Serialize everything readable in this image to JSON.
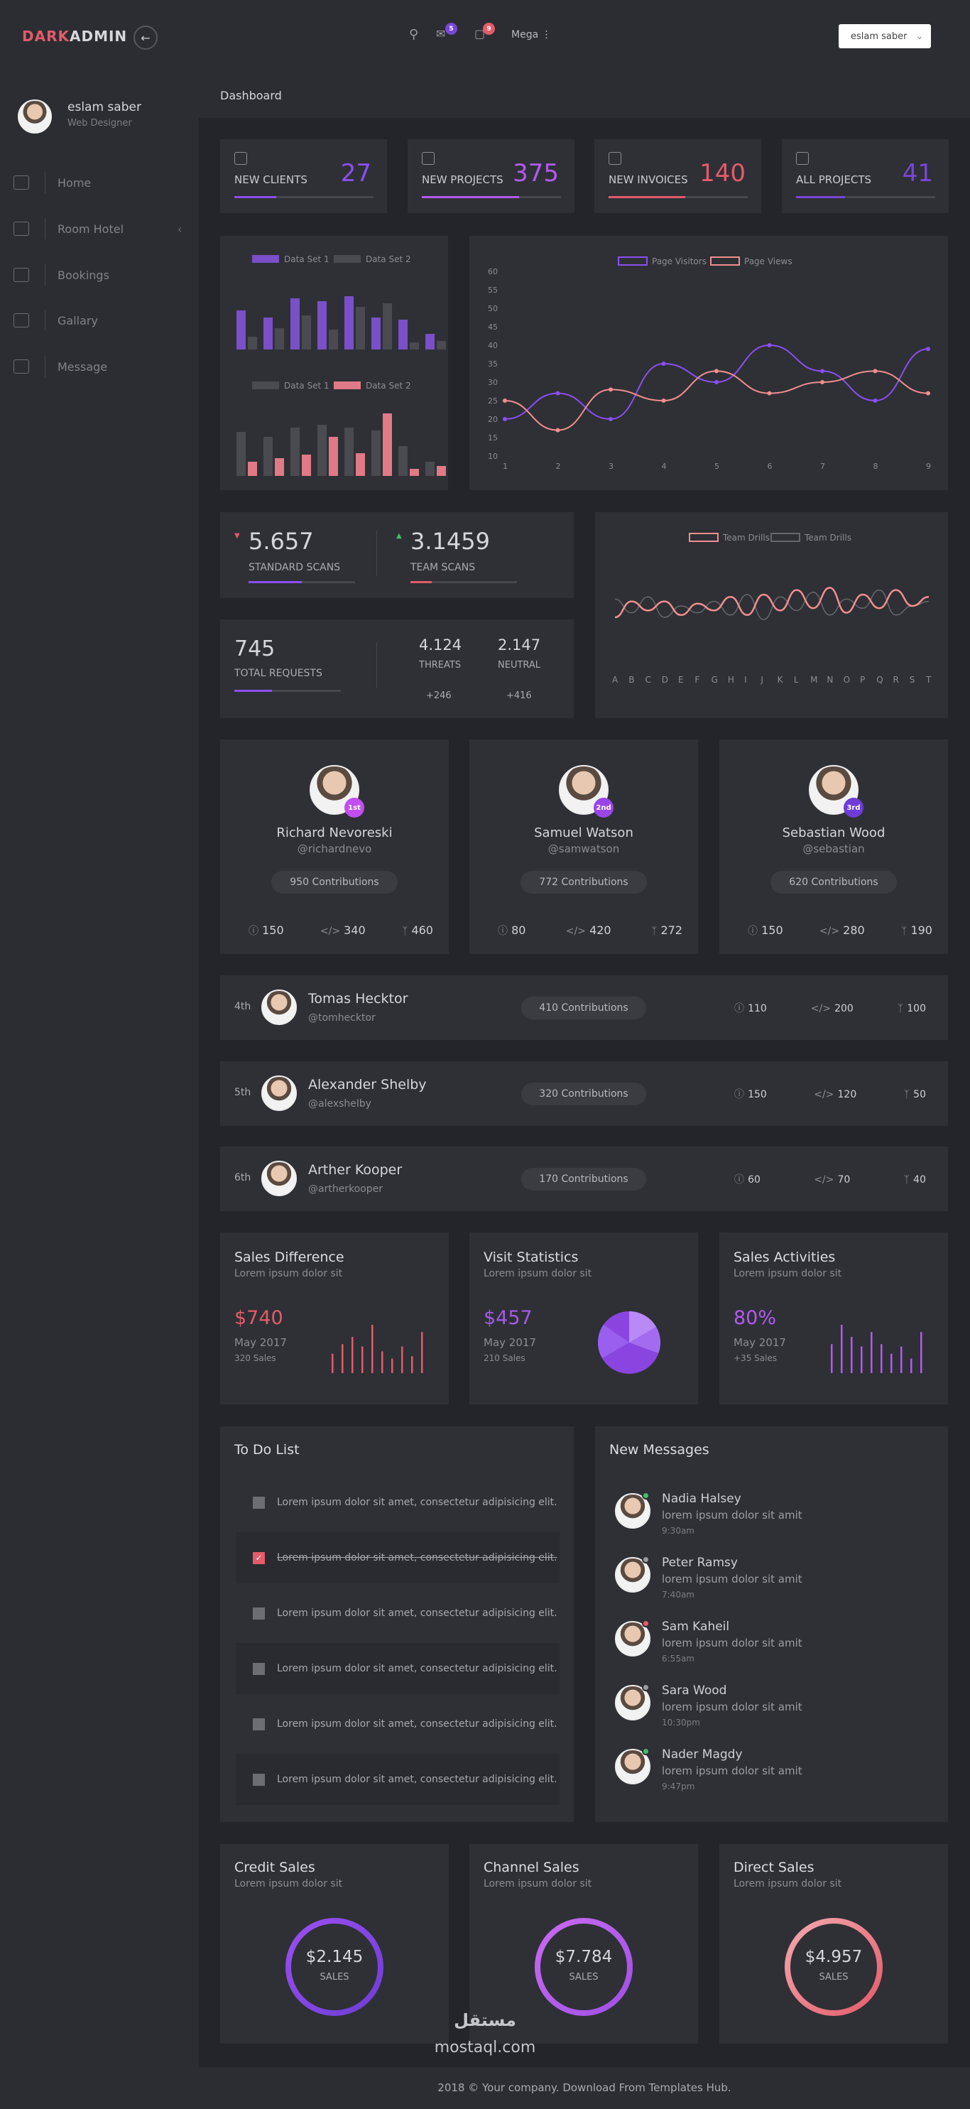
{
  "header": {
    "logo_dark": "DARK",
    "logo_admin": "ADMIN",
    "mail_badge": "5",
    "cart_badge": "9",
    "mega": "Mega",
    "user": "eslam saber"
  },
  "sidebar": {
    "name": "eslam saber",
    "role": "Web Designer",
    "items": [
      {
        "label": "Home"
      },
      {
        "label": "Room Hotel"
      },
      {
        "label": "Bookings"
      },
      {
        "label": "Gallary"
      },
      {
        "label": "Message"
      }
    ]
  },
  "breadcrumb": "Dashboard",
  "stats": [
    {
      "label": "NEW CLIENTS",
      "value": "27",
      "color": "#8b4ff0",
      "progress": 0.3
    },
    {
      "label": "NEW PROJECTS",
      "value": "375",
      "color": "#b35af2",
      "progress": 0.7
    },
    {
      "label": "NEW INVOICES",
      "value": "140",
      "color": "#e45b6a",
      "progress": 0.55
    },
    {
      "label": "ALL PROJECTS",
      "value": "41",
      "color": "#7a45d8",
      "progress": 0.35
    }
  ],
  "bar_chart_1": {
    "legend": [
      "Data Set 1",
      "Data Set 2"
    ],
    "colors": [
      "#7a4fc8",
      "#4a4b50"
    ],
    "series": [
      [
        55,
        45,
        72,
        68,
        75,
        45,
        42,
        22
      ],
      [
        18,
        30,
        48,
        28,
        60,
        65,
        10,
        12
      ]
    ]
  },
  "bar_chart_2": {
    "legend": [
      "Data Set 1",
      "Data Set 2"
    ],
    "colors": [
      "#4a4b50",
      "#e07a86"
    ],
    "series": [
      [
        62,
        55,
        68,
        72,
        68,
        64,
        42,
        20
      ],
      [
        20,
        25,
        30,
        55,
        32,
        88,
        10,
        14
      ]
    ]
  },
  "line_chart": {
    "legend": [
      "Page Visitors",
      "Page Views"
    ],
    "colors": [
      "#8b4ff0",
      "#f28e8e"
    ],
    "x": [
      "1",
      "2",
      "3",
      "4",
      "5",
      "6",
      "7",
      "8",
      "9"
    ],
    "yticks": [
      "10",
      "15",
      "20",
      "25",
      "30",
      "35",
      "40",
      "45",
      "50",
      "55",
      "60"
    ],
    "visitors": [
      20,
      27,
      20,
      35,
      30,
      40,
      33,
      25,
      39
    ],
    "views": [
      25,
      17,
      28,
      25,
      33,
      27,
      30,
      33,
      27
    ]
  },
  "scans": {
    "standard_value": "5.657",
    "standard_label": "STANDARD SCANS",
    "team_value": "3.1459",
    "team_label": "TEAM SCANS"
  },
  "requests": {
    "total": "745",
    "total_label": "TOTAL REQUESTS",
    "threats": "4.124",
    "threats_label": "THREATS",
    "threats_delta": "+246",
    "neutral": "2.147",
    "neutral_label": "NEUTRAL",
    "neutral_delta": "+416"
  },
  "drills_chart": {
    "legend": [
      "Team Drills",
      "Team Drills"
    ],
    "colors": [
      "#f28e8e",
      "#66686d"
    ],
    "x": [
      "A",
      "B",
      "C",
      "D",
      "E",
      "F",
      "G",
      "H",
      "I",
      "J",
      "K",
      "L",
      "M",
      "N",
      "O",
      "P",
      "Q",
      "R",
      "S",
      "T"
    ],
    "s1": [
      20,
      34,
      26,
      34,
      22,
      32,
      26,
      38,
      22,
      40,
      26,
      44,
      28,
      46,
      24,
      40,
      28,
      44,
      30,
      38
    ],
    "s2": [
      36,
      24,
      38,
      20,
      30,
      24,
      34,
      22,
      40,
      18,
      38,
      26,
      42,
      22,
      36,
      28,
      44,
      22,
      30,
      34
    ]
  },
  "top_contributors": [
    {
      "rank": "1st",
      "name": "Richard Nevoreski",
      "handle": "@richardnevo",
      "contrib": "950 Contributions",
      "issues": "150",
      "code": "340",
      "forks": "460",
      "badge": "#c24df0"
    },
    {
      "rank": "2nd",
      "name": "Samuel Watson",
      "handle": "@samwatson",
      "contrib": "772 Contributions",
      "issues": "80",
      "code": "420",
      "forks": "272",
      "badge": "#9a45e6"
    },
    {
      "rank": "3rd",
      "name": "Sebastian Wood",
      "handle": "@sebastian",
      "contrib": "620 Contributions",
      "issues": "150",
      "code": "280",
      "forks": "190",
      "badge": "#6e3dd6"
    }
  ],
  "contributors": [
    {
      "rank": "4th",
      "name": "Tomas Hecktor",
      "handle": "@tomhecktor",
      "contrib": "410 Contributions",
      "issues": "110",
      "code": "200",
      "forks": "100"
    },
    {
      "rank": "5th",
      "name": "Alexander Shelby",
      "handle": "@alexshelby",
      "contrib": "320 Contributions",
      "issues": "150",
      "code": "120",
      "forks": "50"
    },
    {
      "rank": "6th",
      "name": "Arther Kooper",
      "handle": "@artherkooper",
      "contrib": "170 Contributions",
      "issues": "60",
      "code": "70",
      "forks": "40"
    }
  ],
  "sales_cards": [
    {
      "title": "Sales Difference",
      "sub": "Lorem ipsum dolor sit",
      "value": "$740",
      "date": "May 2017",
      "note": "320 Sales",
      "color": "#e45b6a",
      "bars": [
        0.4,
        0.6,
        0.75,
        0.55,
        1.0,
        0.45,
        0.3,
        0.55,
        0.35,
        0.85
      ]
    },
    {
      "title": "Visit Statistics",
      "sub": "Lorem ipsum dolor sit",
      "value": "$457",
      "date": "May 2017",
      "note": "210 Sales",
      "color": "#a35ae8"
    },
    {
      "title": "Sales Activities",
      "sub": "Lorem ipsum dolor sit",
      "value": "80%",
      "date": "May 2017",
      "note": "+35 Sales",
      "color": "#b35af2",
      "bars": [
        0.6,
        1.0,
        0.75,
        0.55,
        0.85,
        0.6,
        0.4,
        0.55,
        0.3,
        0.85
      ]
    }
  ],
  "todo": {
    "title": "To Do List",
    "items": [
      {
        "text": "Lorem ipsum dolor sit amet, consectetur adipisicing elit.",
        "done": false
      },
      {
        "text": "Lorem ipsum dolor sit amet, consectetur adipisicing elit.",
        "done": true
      },
      {
        "text": "Lorem ipsum dolor sit amet, consectetur adipisicing elit.",
        "done": false
      },
      {
        "text": "Lorem ipsum dolor sit amet, consectetur adipisicing elit.",
        "done": false
      },
      {
        "text": "Lorem ipsum dolor sit amet, consectetur adipisicing elit.",
        "done": false
      },
      {
        "text": "Lorem ipsum dolor sit amet, consectetur adipisicing elit.",
        "done": false
      }
    ]
  },
  "messages": {
    "title": "New Messages",
    "items": [
      {
        "name": "Nadia Halsey",
        "text": "lorem ipsum dolor sit amit",
        "time": "9:30am",
        "status": "#3fbf6a"
      },
      {
        "name": "Peter Ramsy",
        "text": "lorem ipsum dolor sit amit",
        "time": "7:40am",
        "status": "#9a9ca1"
      },
      {
        "name": "Sam Kaheil",
        "text": "lorem ipsum dolor sit amit",
        "time": "6:55am",
        "status": "#e45b6a"
      },
      {
        "name": "Sara Wood",
        "text": "lorem ipsum dolor sit amit",
        "time": "10:30pm",
        "status": "#9a9ca1"
      },
      {
        "name": "Nader Magdy",
        "text": "lorem ipsum dolor sit amit",
        "time": "9:47pm",
        "status": "#3fbf6a"
      }
    ]
  },
  "donuts": [
    {
      "title": "Credit Sales",
      "sub": "Lorem ipsum dolor sit",
      "value": "$2.145",
      "label": "SALES",
      "c1": "#9b4ff0",
      "c2": "#6e3dd6"
    },
    {
      "title": "Channel Sales",
      "sub": "Lorem ipsum dolor sit",
      "value": "$7.784",
      "label": "SALES",
      "c1": "#c96af0",
      "c2": "#a050e6"
    },
    {
      "title": "Direct Sales",
      "sub": "Lorem ipsum dolor sit",
      "value": "$4.957",
      "label": "SALES",
      "c1": "#f3a8ae",
      "c2": "#e45b6a"
    }
  ],
  "watermark": "mostaql.com",
  "footer": "2018 © Your company. Download From Templates Hub."
}
